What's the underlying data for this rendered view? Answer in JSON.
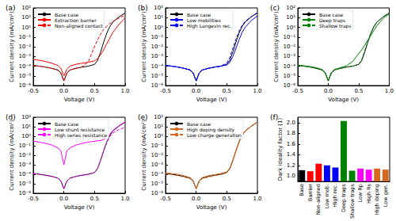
{
  "chart_data": [
    {
      "type": "line",
      "title": "(a)",
      "xlabel": "Voltage (V)",
      "ylabel": "Current density (mA/cm²)",
      "log": "y",
      "grid": false,
      "legend": "upper left",
      "xlim": [
        -0.5,
        1.0
      ],
      "xticks": [
        -0.5,
        {
          "value": 0,
          "label": "0.0"
        },
        0.5,
        {
          "value": 1,
          "label": "1.0"
        }
      ],
      "ylim": [
        1e-06,
        100
      ],
      "yticks": [
        {
          "value": 1e-06,
          "label": "10⁻⁶"
        },
        {
          "value": 1e-05,
          "label": "10⁻⁵"
        },
        {
          "value": 0.0001,
          "label": "10⁻⁴"
        },
        {
          "value": 0.001,
          "label": "10⁻³"
        },
        {
          "value": 0.01,
          "label": "10⁻²"
        },
        {
          "value": 0.1,
          "label": "10⁻¹"
        },
        {
          "value": 1,
          "label": "10⁰"
        },
        {
          "value": 10,
          "label": "10¹"
        },
        {
          "value": 100,
          "label": "10²"
        }
      ],
      "x": [
        -0.5,
        -0.4,
        -0.3,
        -0.2,
        -0.1,
        -0.05,
        0,
        0.05,
        0.1,
        0.2,
        0.3,
        0.4,
        0.5,
        0.55,
        0.6,
        0.65,
        0.7,
        0.75,
        0.8,
        0.9,
        1.0
      ],
      "series": [
        {
          "name": "Base case",
          "color": "#000000",
          "line_style": "solid",
          "values": [
            0.00012,
            0.0001,
            8e-05,
            6e-05,
            4e-05,
            2e-05,
            3e-06,
            2e-05,
            4e-05,
            6e-05,
            8e-05,
            0.0001,
            0.00015,
            0.0004,
            0.003,
            0.03,
            0.25,
            1.2,
            3.5,
            12,
            30
          ]
        },
        {
          "name": "Extraction barrier",
          "color": "#ff0000",
          "line_style": "solid",
          "values": [
            0.0005,
            0.0004,
            0.0003,
            0.0002,
            0.00012,
            6e-05,
            1e-05,
            5e-05,
            0.0001,
            0.00016,
            0.0002,
            0.00025,
            0.00035,
            0.0006,
            0.0015,
            0.005,
            0.02,
            0.08,
            0.3,
            2,
            10
          ]
        },
        {
          "name": "Non-aligned contact",
          "color": "#ff0000",
          "line_style": "dashed",
          "values": [
            0.00012,
            0.0001,
            8e-05,
            6e-05,
            4e-05,
            2e-05,
            3e-06,
            2e-05,
            4e-05,
            6e-05,
            9e-05,
            0.0003,
            0.01,
            0.05,
            0.2,
            0.6,
            1.3,
            2.5,
            4,
            9,
            18
          ]
        }
      ]
    },
    {
      "type": "line",
      "title": "(b)",
      "xlabel": "Voltage (V)",
      "ylabel": "Current density (mA/cm²)",
      "log": "y",
      "grid": false,
      "legend": "upper left",
      "xlim": [
        -0.5,
        1.0
      ],
      "xticks": [
        -0.5,
        {
          "value": 0,
          "label": "0.0"
        },
        0.5,
        {
          "value": 1,
          "label": "1.0"
        }
      ],
      "ylim": [
        1e-06,
        100
      ],
      "yticks": [
        {
          "value": 1e-06,
          "label": "10⁻⁶"
        },
        {
          "value": 1e-05,
          "label": "10⁻⁵"
        },
        {
          "value": 0.0001,
          "label": "10⁻⁴"
        },
        {
          "value": 0.001,
          "label": "10⁻³"
        },
        {
          "value": 0.01,
          "label": "10⁻²"
        },
        {
          "value": 0.1,
          "label": "10⁻¹"
        },
        {
          "value": 1,
          "label": "10⁰"
        },
        {
          "value": 10,
          "label": "10¹"
        },
        {
          "value": 100,
          "label": "10²"
        }
      ],
      "x": [
        -0.5,
        -0.4,
        -0.3,
        -0.2,
        -0.1,
        -0.05,
        0,
        0.05,
        0.1,
        0.2,
        0.3,
        0.4,
        0.5,
        0.55,
        0.6,
        0.65,
        0.7,
        0.75,
        0.8,
        0.9,
        1.0
      ],
      "series": [
        {
          "name": "Base case",
          "color": "#000000",
          "line_style": "solid",
          "values": [
            0.00012,
            0.0001,
            8e-05,
            6e-05,
            4e-05,
            2e-05,
            3e-06,
            2e-05,
            4e-05,
            6e-05,
            8e-05,
            0.0001,
            0.00015,
            0.0004,
            0.003,
            0.03,
            0.25,
            1.2,
            3.5,
            12,
            30
          ]
        },
        {
          "name": "Low mobilities",
          "color": "#0000ff",
          "line_style": "solid",
          "values": [
            0.00012,
            0.0001,
            8e-05,
            6e-05,
            4e-05,
            2e-05,
            3e-06,
            2e-05,
            4e-05,
            6e-05,
            8e-05,
            0.0001,
            0.00013,
            0.00025,
            0.001,
            0.007,
            0.05,
            0.3,
            1,
            5,
            15
          ]
        },
        {
          "name": "High Langevin rec.",
          "color": "#0000ff",
          "line_style": "dashed",
          "values": [
            0.00012,
            0.0001,
            8e-05,
            6e-05,
            4e-05,
            2e-05,
            3e-06,
            2e-05,
            4e-05,
            6e-05,
            8e-05,
            0.0001,
            0.0002,
            0.0008,
            0.007,
            0.06,
            0.4,
            1.6,
            4,
            13,
            32
          ]
        }
      ]
    },
    {
      "type": "line",
      "title": "(c)",
      "xlabel": "Voltage (V)",
      "ylabel": "Current density (mA/cm²)",
      "log": "y",
      "grid": false,
      "legend": "upper left",
      "xlim": [
        -0.5,
        1.0
      ],
      "xticks": [
        -0.5,
        {
          "value": 0,
          "label": "0.0"
        },
        0.5,
        {
          "value": 1,
          "label": "1.0"
        }
      ],
      "ylim": [
        1e-06,
        100
      ],
      "yticks": [
        {
          "value": 1e-06,
          "label": "10⁻⁶"
        },
        {
          "value": 1e-05,
          "label": "10⁻⁵"
        },
        {
          "value": 0.0001,
          "label": "10⁻⁴"
        },
        {
          "value": 0.001,
          "label": "10⁻³"
        },
        {
          "value": 0.01,
          "label": "10⁻²"
        },
        {
          "value": 0.1,
          "label": "10⁻¹"
        },
        {
          "value": 1,
          "label": "10⁰"
        },
        {
          "value": 10,
          "label": "10¹"
        },
        {
          "value": 100,
          "label": "10²"
        }
      ],
      "x": [
        -0.5,
        -0.4,
        -0.3,
        -0.2,
        -0.1,
        -0.05,
        0,
        0.05,
        0.1,
        0.2,
        0.3,
        0.4,
        0.5,
        0.55,
        0.6,
        0.65,
        0.7,
        0.75,
        0.8,
        0.9,
        1.0
      ],
      "series": [
        {
          "name": "Base case",
          "color": "#000000",
          "line_style": "solid",
          "values": [
            0.00012,
            0.0001,
            8e-05,
            6e-05,
            4e-05,
            2e-05,
            3e-06,
            2e-05,
            4e-05,
            6e-05,
            8e-05,
            0.0001,
            0.00015,
            0.0004,
            0.003,
            0.03,
            0.25,
            1.2,
            3.5,
            12,
            30
          ]
        },
        {
          "name": "Deep traps",
          "color": "#008000",
          "line_style": "solid",
          "values": [
            0.00013,
            0.00011,
            9e-05,
            7e-05,
            4.5e-05,
            2.2e-05,
            3e-06,
            2.2e-05,
            4.5e-05,
            7e-05,
            0.00011,
            0.0003,
            0.002,
            0.005,
            0.015,
            0.05,
            0.15,
            0.5,
            1.5,
            8,
            25
          ]
        },
        {
          "name": "Shallow traps",
          "color": "#008000",
          "line_style": "dashed",
          "values": [
            0.00012,
            0.0001,
            8e-05,
            6e-05,
            4e-05,
            2e-05,
            3e-06,
            2e-05,
            4e-05,
            6e-05,
            8e-05,
            0.0001,
            0.00016,
            0.0005,
            0.004,
            0.035,
            0.28,
            1.3,
            3.6,
            12,
            30
          ]
        }
      ]
    },
    {
      "type": "line",
      "title": "(d)",
      "xlabel": "Voltage (V)",
      "ylabel": "Current density (mA/cm²)",
      "log": "y",
      "grid": false,
      "legend": "upper left",
      "xlim": [
        -0.5,
        1.0
      ],
      "xticks": [
        -0.5,
        {
          "value": 0,
          "label": "0.0"
        },
        0.5,
        {
          "value": 1,
          "label": "1.0"
        }
      ],
      "ylim": [
        1e-06,
        100
      ],
      "yticks": [
        {
          "value": 1e-06,
          "label": "10⁻⁶"
        },
        {
          "value": 1e-05,
          "label": "10⁻⁵"
        },
        {
          "value": 0.0001,
          "label": "10⁻⁴"
        },
        {
          "value": 0.001,
          "label": "10⁻³"
        },
        {
          "value": 0.01,
          "label": "10⁻²"
        },
        {
          "value": 0.1,
          "label": "10⁻¹"
        },
        {
          "value": 1,
          "label": "10⁰"
        },
        {
          "value": 10,
          "label": "10¹"
        },
        {
          "value": 100,
          "label": "10²"
        }
      ],
      "x": [
        -0.5,
        -0.4,
        -0.3,
        -0.2,
        -0.1,
        -0.05,
        0,
        0.05,
        0.1,
        0.2,
        0.3,
        0.4,
        0.5,
        0.55,
        0.6,
        0.65,
        0.7,
        0.75,
        0.8,
        0.9,
        1.0
      ],
      "series": [
        {
          "name": "Base case",
          "color": "#000000",
          "line_style": "solid",
          "values": [
            0.00012,
            0.0001,
            8e-05,
            6e-05,
            4e-05,
            2e-05,
            3e-06,
            2e-05,
            4e-05,
            6e-05,
            8e-05,
            0.0001,
            0.00015,
            0.0004,
            0.003,
            0.03,
            0.25,
            1.2,
            3.5,
            12,
            30
          ]
        },
        {
          "name": "Low shunt resistance",
          "color": "#ff00ff",
          "line_style": "solid",
          "values": [
            0.3,
            0.24,
            0.18,
            0.12,
            0.06,
            0.03,
            0.001,
            0.03,
            0.06,
            0.12,
            0.18,
            0.24,
            0.3,
            0.33,
            0.36,
            0.45,
            0.7,
            1.6,
            4,
            13,
            32
          ]
        },
        {
          "name": "High series resistance",
          "color": "#ff00ff",
          "line_style": "dashed",
          "values": [
            0.00012,
            0.0001,
            8e-05,
            6e-05,
            4e-05,
            2e-05,
            3e-06,
            2e-05,
            4e-05,
            6e-05,
            8e-05,
            0.0001,
            0.00015,
            0.0004,
            0.003,
            0.03,
            0.22,
            0.9,
            2.2,
            5,
            9
          ]
        }
      ]
    },
    {
      "type": "line",
      "title": "(e)",
      "xlabel": "Voltage (V)",
      "ylabel": "Current density (mA/cm²)",
      "log": "y",
      "grid": false,
      "legend": "upper left",
      "xlim": [
        -0.5,
        1.0
      ],
      "xticks": [
        -0.5,
        {
          "value": 0,
          "label": "0.0"
        },
        0.5,
        {
          "value": 1,
          "label": "1.0"
        }
      ],
      "ylim": [
        1e-06,
        100
      ],
      "yticks": [
        {
          "value": 1e-06,
          "label": "10⁻⁶"
        },
        {
          "value": 1e-05,
          "label": "10⁻⁵"
        },
        {
          "value": 0.0001,
          "label": "10⁻⁴"
        },
        {
          "value": 0.001,
          "label": "10⁻³"
        },
        {
          "value": 0.01,
          "label": "10⁻²"
        },
        {
          "value": 0.1,
          "label": "10⁻¹"
        },
        {
          "value": 1,
          "label": "10⁰"
        },
        {
          "value": 10,
          "label": "10¹"
        },
        {
          "value": 100,
          "label": "10²"
        }
      ],
      "x": [
        -0.5,
        -0.4,
        -0.3,
        -0.2,
        -0.1,
        -0.05,
        0,
        0.05,
        0.1,
        0.2,
        0.3,
        0.4,
        0.5,
        0.55,
        0.6,
        0.65,
        0.7,
        0.75,
        0.8,
        0.9,
        1.0
      ],
      "series": [
        {
          "name": "Base case",
          "color": "#000000",
          "line_style": "solid",
          "values": [
            0.00012,
            0.0001,
            8e-05,
            6e-05,
            4e-05,
            2e-05,
            3e-06,
            2e-05,
            4e-05,
            6e-05,
            8e-05,
            0.0001,
            0.00015,
            0.0004,
            0.003,
            0.03,
            0.25,
            1.2,
            3.5,
            12,
            30
          ]
        },
        {
          "name": "High doping density",
          "color": "#d2691e",
          "line_style": "solid",
          "values": [
            0.00015,
            0.00012,
            0.0001,
            7e-05,
            4.5e-05,
            2.2e-05,
            3e-06,
            2.2e-05,
            4.5e-05,
            7e-05,
            9e-05,
            0.00012,
            0.00018,
            0.00045,
            0.0032,
            0.03,
            0.25,
            1.2,
            3.5,
            12,
            30
          ]
        },
        {
          "name": "Low charge generation",
          "color": "#d2691e",
          "line_style": "dashed",
          "values": [
            0.00011,
            9e-05,
            7e-05,
            5e-05,
            3.5e-05,
            1.8e-05,
            3e-06,
            1.8e-05,
            3.5e-05,
            5e-05,
            7e-05,
            9e-05,
            0.00014,
            0.00038,
            0.0028,
            0.028,
            0.24,
            1.1,
            3.2,
            11,
            28
          ]
        }
      ]
    },
    {
      "type": "bar",
      "title": "(f)",
      "ylabel": "Dark ideality factor (1)",
      "grid": false,
      "categories": [
        "Base",
        "Barrier",
        "Non-aligned",
        "Low mob.",
        "High rec.",
        "Deep traps",
        "Shallow traps",
        "Low Rp",
        "High Rs",
        "High doping",
        "Low gen."
      ],
      "values": [
        1.11,
        1.09,
        1.23,
        1.2,
        1.16,
        2.03,
        1.1,
        1.14,
        1.12,
        1.14,
        1.12
      ],
      "colors": [
        "#000000",
        "#ff0000",
        "#ff0000",
        "#0000ff",
        "#0000ff",
        "#008000",
        "#008000",
        "#ff00ff",
        "#ff00ff",
        "#d2691e",
        "#d2691e"
      ],
      "ylim": [
        0.9,
        2.1
      ],
      "yticks": [
        {
          "value": 1,
          "label": "1.0"
        },
        1.2,
        1.4,
        1.6,
        1.8,
        {
          "value": 2,
          "label": "2.0"
        }
      ]
    }
  ]
}
